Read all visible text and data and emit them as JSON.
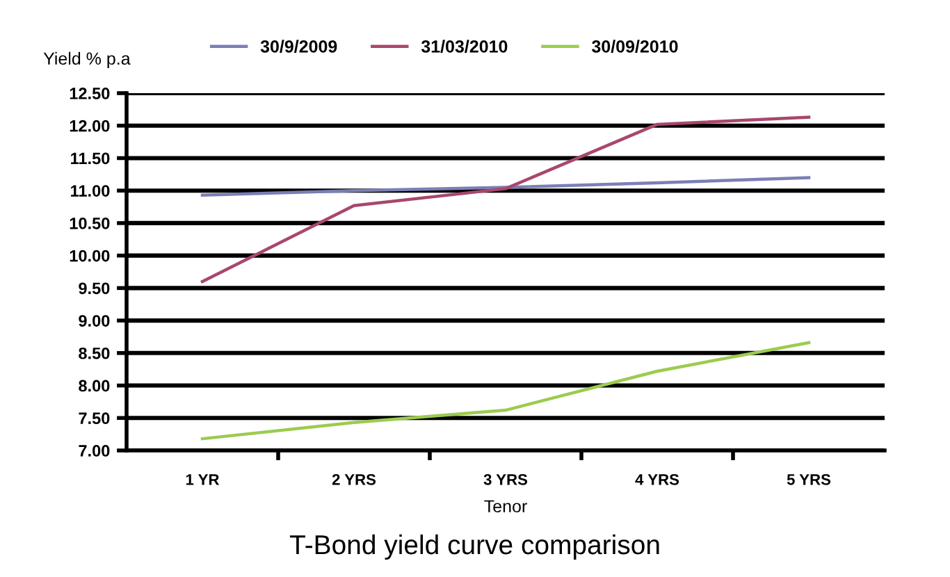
{
  "chart_data": {
    "type": "line",
    "title": "T-Bond yield curve comparison",
    "xlabel": "Tenor",
    "ylabel": "Yield % p.a",
    "categories": [
      "1 YR",
      "2 YRS",
      "3 YRS",
      "4 YRS",
      "5 YRS"
    ],
    "series": [
      {
        "name": "30/9/2009",
        "color": "#7b7fb5",
        "values": [
          10.93,
          11.0,
          11.05,
          11.12,
          11.2
        ]
      },
      {
        "name": "31/03/2010",
        "color": "#a8476e",
        "values": [
          9.6,
          10.77,
          11.03,
          12.02,
          12.13
        ]
      },
      {
        "name": "30/09/2010",
        "color": "#9ccb4f",
        "values": [
          7.18,
          7.43,
          7.62,
          8.22,
          8.66
        ]
      }
    ],
    "ylim": [
      7.0,
      12.5
    ],
    "yticks": [
      {
        "value": 7.0,
        "label": "7.00"
      },
      {
        "value": 7.5,
        "label": "7.50"
      },
      {
        "value": 8.0,
        "label": "8.00"
      },
      {
        "value": 8.5,
        "label": "8.50"
      },
      {
        "value": 9.0,
        "label": "9.00"
      },
      {
        "value": 9.5,
        "label": "9.50"
      },
      {
        "value": 10.0,
        "label": "10.00"
      },
      {
        "value": 10.5,
        "label": "10.50"
      },
      {
        "value": 11.0,
        "label": "11.00"
      },
      {
        "value": 11.5,
        "label": "11.50"
      },
      {
        "value": 12.0,
        "label": "12.00"
      },
      {
        "value": 12.5,
        "label": "12.50"
      }
    ],
    "grid": "y",
    "legend": "top",
    "marker": "none",
    "line_style": "solid"
  }
}
